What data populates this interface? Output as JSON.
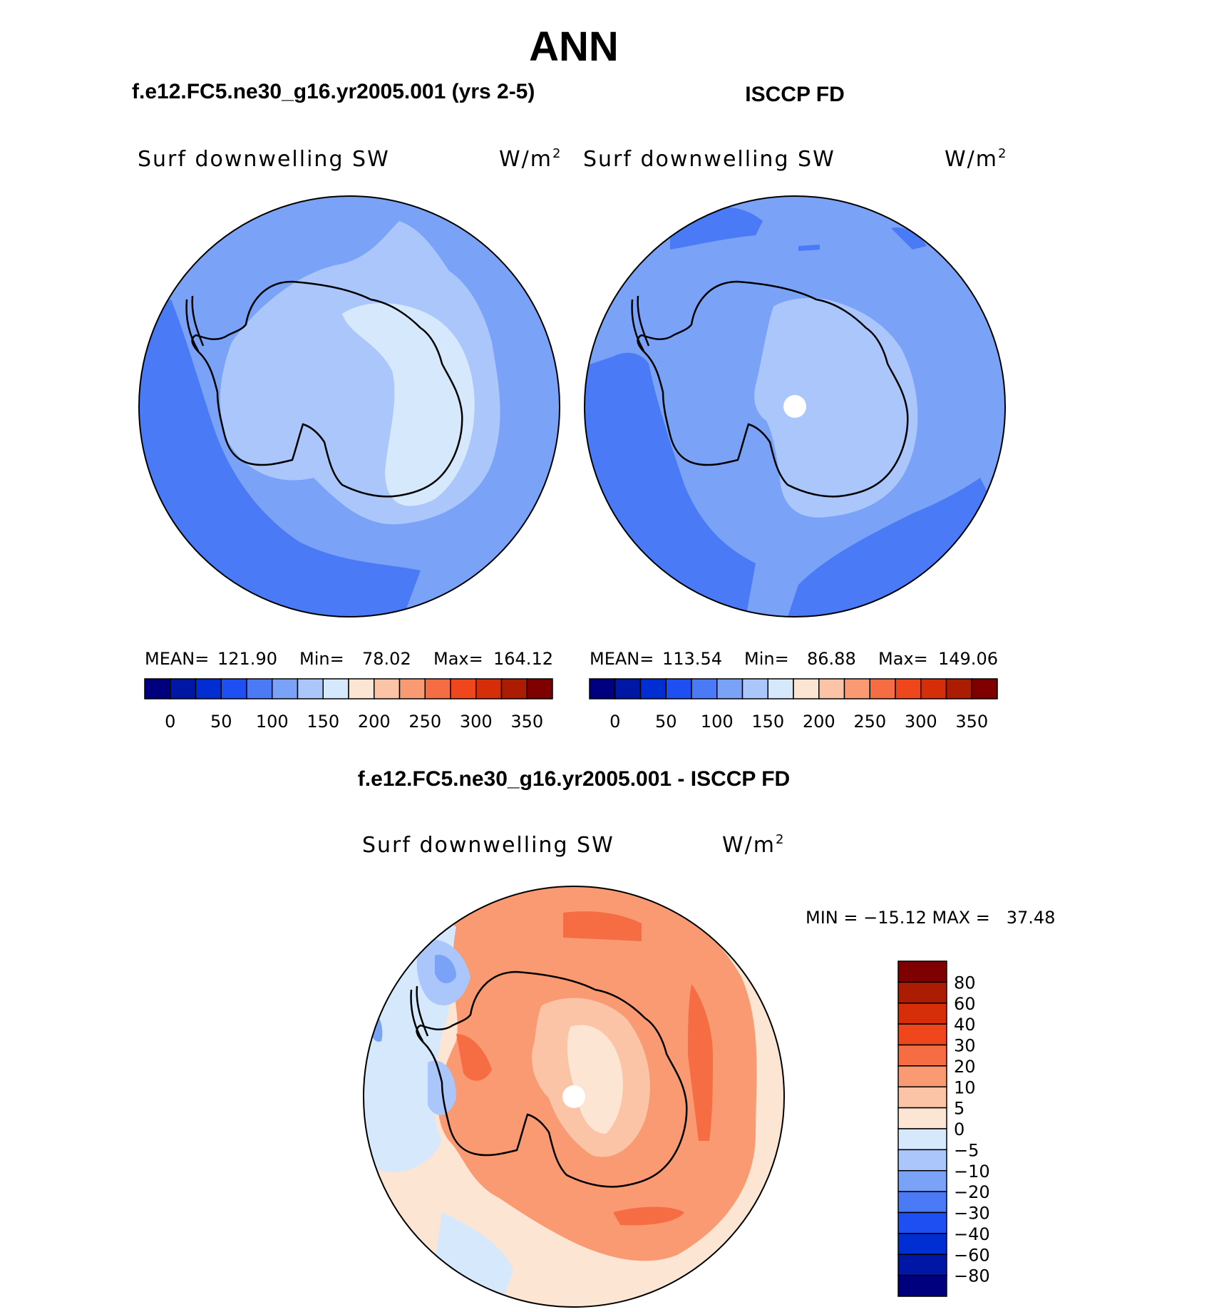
{
  "figure": {
    "season": "ANN",
    "panel_left_title": "f.e12.FC5.ne30_g16.yr2005.001 (yrs 2-5)",
    "panel_right_title": "ISCCP FD",
    "panel_diff_title": "f.e12.FC5.ne30_g16.yr2005.001 - ISCCP FD"
  },
  "panels": {
    "model": {
      "variable": "Surf downwelling SW",
      "units": "W/m",
      "units_sup": "2",
      "mean_label": "MEAN=",
      "mean_value": "121.90",
      "min_label": "Min=",
      "min_value": "78.02",
      "max_label": "Max=",
      "max_value": "164.12"
    },
    "obs": {
      "variable": "Surf downwelling SW",
      "units": "W/m",
      "units_sup": "2",
      "mean_label": "MEAN=",
      "mean_value": "113.54",
      "min_label": "Min=",
      "min_value": "86.88",
      "max_label": "Max=",
      "max_value": "149.06"
    },
    "diff": {
      "variable": "Surf downwelling SW",
      "units": "W/m",
      "units_sup": "2",
      "minmax_text": "MIN = −15.12 MAX =   37.48"
    }
  },
  "colorbars": {
    "abs_colors": [
      "#00007f",
      "#0017a6",
      "#002ed2",
      "#1e4ff2",
      "#4a7af5",
      "#7aa3f7",
      "#aac6fa",
      "#d5e8fc",
      "#fde5d3",
      "#fbc4a7",
      "#f99a72",
      "#f66d43",
      "#f0461c",
      "#d62e08",
      "#ac1c02",
      "#7f0000"
    ],
    "abs_labels": [
      "0",
      "50",
      "100",
      "150",
      "200",
      "250",
      "300",
      "350"
    ],
    "diff_colors": [
      "#7f0000",
      "#ac1c02",
      "#d62e08",
      "#f0461c",
      "#f66d43",
      "#f99a72",
      "#fbc4a7",
      "#fde5d3",
      "#d5e8fc",
      "#aac6fa",
      "#7aa3f7",
      "#4a7af5",
      "#1e4ff2",
      "#002ed2",
      "#0017a6",
      "#00007f"
    ],
    "diff_labels": [
      "80",
      "60",
      "40",
      "30",
      "20",
      "10",
      "5",
      "0",
      "−5",
      "−10",
      "−20",
      "−30",
      "−40",
      "−60",
      "−80"
    ]
  },
  "map_colors": {
    "abs_75_100": "#4a7af5",
    "abs_100_125": "#7aa3f7",
    "abs_125_150": "#aac6fa",
    "abs_150_175": "#d5e8fc",
    "diff_0_5": "#fde5d3",
    "diff_5_10": "#fbc4a7",
    "diff_10_20": "#f99a72",
    "diff_20_30": "#f66d43",
    "diff_m5_0": "#d5e8fc",
    "diff_m10_m5": "#aac6fa",
    "diff_m20_m10": "#7aa3f7",
    "missing": "#ffffff",
    "coast": "#000000"
  }
}
